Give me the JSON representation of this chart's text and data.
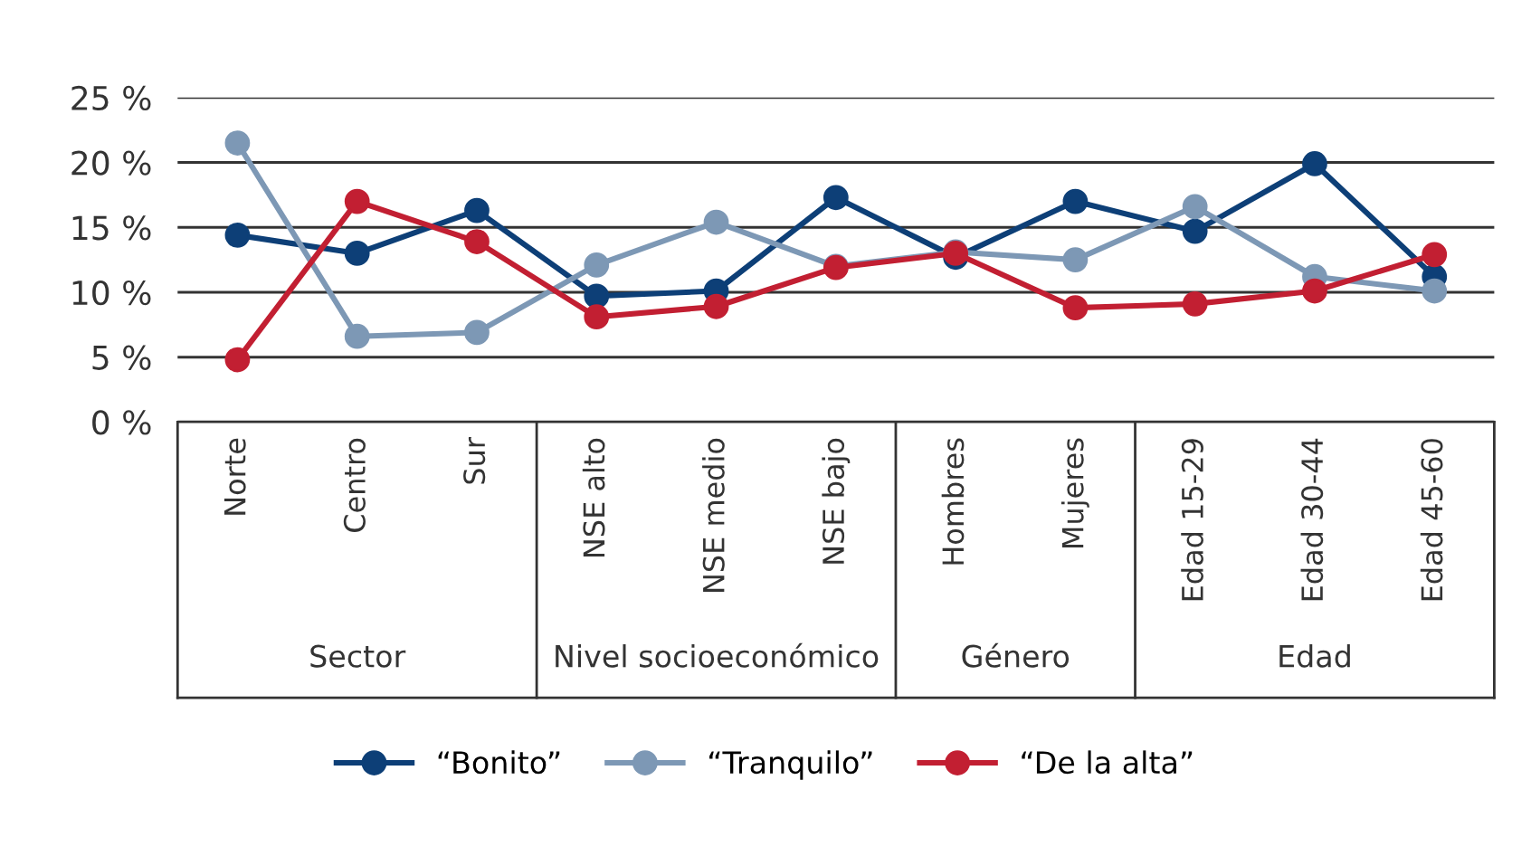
{
  "chart_data": {
    "type": "line",
    "categories": [
      "Norte",
      "Centro",
      "Sur",
      "NSE alto",
      "NSE medio",
      "NSE bajo",
      "Hombres",
      "Mujeres",
      "Edad 15-29",
      "Edad 30-44",
      "Edad 45-60"
    ],
    "series": [
      {
        "name": "“Bonito”",
        "color": "#0d3f77",
        "values": [
          14.4,
          13.0,
          16.3,
          9.7,
          10.1,
          17.3,
          12.7,
          17.0,
          14.7,
          19.9,
          11.2
        ]
      },
      {
        "name": "“Tranquilo”",
        "color": "#7d98b5",
        "values": [
          21.5,
          6.6,
          6.9,
          12.1,
          15.4,
          12.0,
          13.1,
          12.5,
          16.6,
          11.2,
          10.1
        ]
      },
      {
        "name": "“De la alta”",
        "color": "#c21f32",
        "values": [
          4.8,
          17.0,
          13.9,
          8.1,
          8.9,
          11.9,
          13.0,
          8.8,
          9.1,
          10.1,
          12.9
        ]
      }
    ],
    "annotations": [
      "Sector",
      "Nivel socioeconómico",
      "Género",
      "Edad"
    ],
    "ylim": [
      0,
      25
    ],
    "yticks": [
      {
        "value": 0,
        "label": "0 %"
      },
      {
        "value": 5,
        "label": "5 %"
      },
      {
        "value": 10,
        "label": "10 %"
      },
      {
        "value": 15,
        "label": "15 %"
      },
      {
        "value": 20,
        "label": "20 %"
      },
      {
        "value": 25,
        "label": "25 %"
      }
    ],
    "grid": "y",
    "legend": "bottom",
    "marker": "circle",
    "line_style": "solid"
  }
}
